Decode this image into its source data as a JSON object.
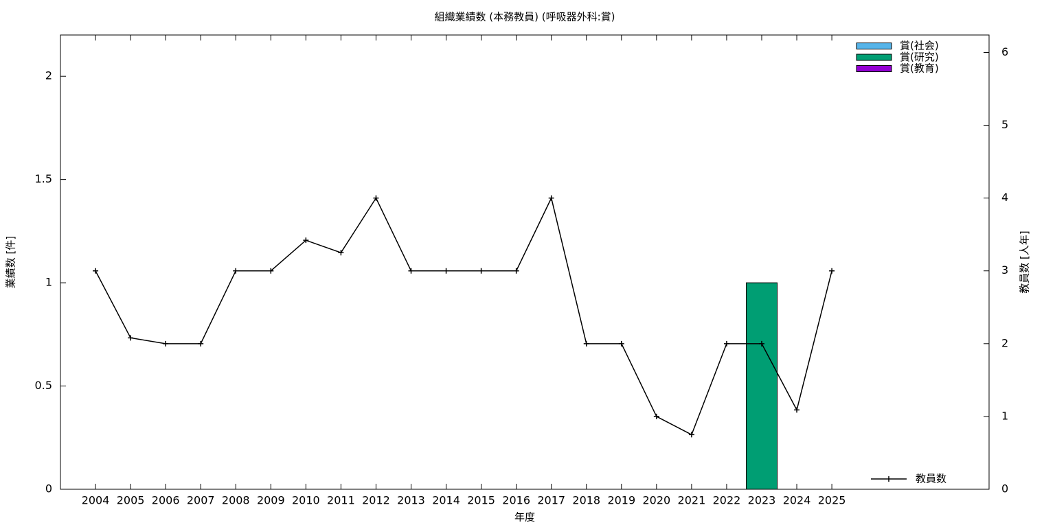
{
  "chart_data": {
    "type": "bar",
    "title": "組織業績数 (本務教員) (呼吸器外科:賞)",
    "x_label": "年度",
    "y_label": "業績数 [件]",
    "y2_label": "教員数 [人年]",
    "categories": [
      "2004",
      "2005",
      "2006",
      "2007",
      "2008",
      "2009",
      "2010",
      "2011",
      "2012",
      "2013",
      "2014",
      "2015",
      "2016",
      "2017",
      "2018",
      "2019",
      "2020",
      "2021",
      "2022",
      "2023",
      "2024",
      "2025"
    ],
    "stacked": true,
    "series": [
      {
        "name": "賞(社会)",
        "color": "#56b4e9",
        "values": [
          0,
          0,
          0,
          0,
          0,
          0,
          0,
          0,
          0,
          0,
          0,
          0,
          0,
          0,
          0,
          0,
          0,
          0,
          0,
          0,
          0,
          0
        ]
      },
      {
        "name": "賞(研究)",
        "color": "#009e73",
        "values": [
          0,
          0,
          0,
          0,
          0,
          0,
          0,
          0,
          0,
          0,
          0,
          0,
          0,
          0,
          0,
          0,
          0,
          0,
          0,
          1,
          0,
          0
        ]
      },
      {
        "name": "賞(教育)",
        "color": "#9400d3",
        "values": [
          0,
          0,
          0,
          0,
          0,
          0,
          0,
          0,
          0,
          0,
          0,
          0,
          0,
          0,
          0,
          0,
          0,
          0,
          0,
          0,
          0,
          0
        ]
      },
      {
        "name": "教員数",
        "color": "#000000",
        "type": "line",
        "axis": "y2",
        "values": [
          3,
          2.08,
          2,
          2,
          3,
          3,
          3.42,
          3.25,
          4,
          3,
          3,
          3,
          3,
          4,
          2,
          2,
          1,
          0.75,
          2,
          2,
          1.09,
          3
        ]
      }
    ],
    "ylim": [
      0,
      2.2
    ],
    "yticks": [
      0,
      0.5,
      1,
      1.5,
      2
    ],
    "y2lim": [
      0,
      6.24
    ],
    "y2ticks": [
      0,
      1,
      2,
      3,
      4,
      5,
      6
    ]
  }
}
